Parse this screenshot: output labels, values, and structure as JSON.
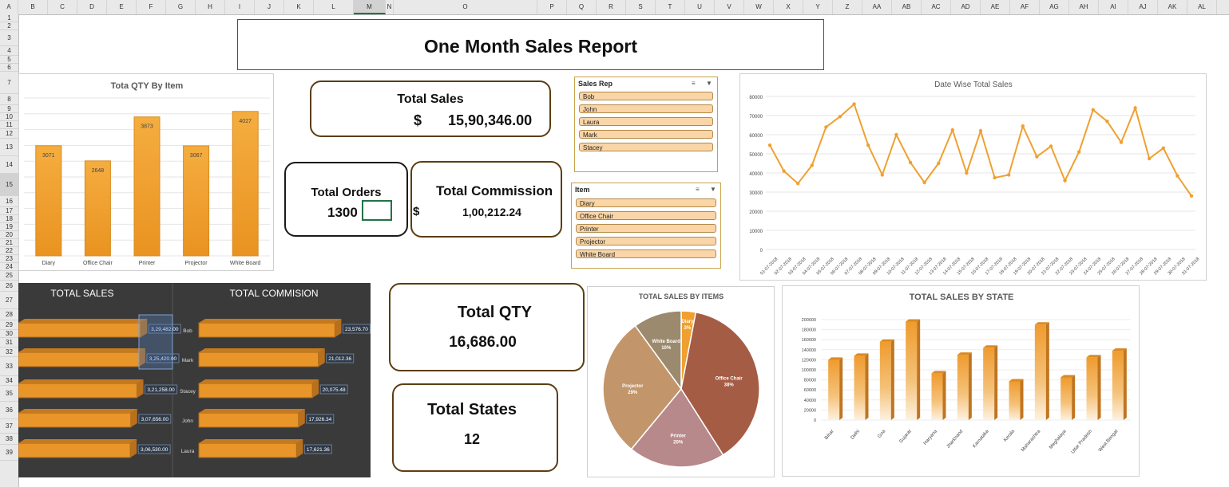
{
  "sheet": {
    "columns": [
      "A",
      "B",
      "C",
      "D",
      "E",
      "F",
      "G",
      "H",
      "I",
      "J",
      "K",
      "L",
      "M",
      "N",
      "O",
      "P",
      "Q",
      "R",
      "S",
      "T",
      "U",
      "V",
      "W",
      "X",
      "Y",
      "Z",
      "AA",
      "AB",
      "AC",
      "AD",
      "AE",
      "AF",
      "AG",
      "AH",
      "AI",
      "AJ",
      "AK",
      "AL"
    ],
    "selected_column": "M",
    "rows": [
      "1",
      "2",
      "3",
      "4",
      "5",
      "6",
      "7",
      "8",
      "9",
      "10",
      "11",
      "12",
      "13",
      "14",
      "15",
      "16",
      "17",
      "18",
      "19",
      "20",
      "21",
      "22",
      "23",
      "24",
      "25",
      "26",
      "27",
      "28",
      "29",
      "30",
      "31",
      "32",
      "33",
      "34",
      "35",
      "36",
      "37",
      "38",
      "39"
    ],
    "selected_row": "15"
  },
  "report_title": "One Month Sales Report",
  "kpis": {
    "total_sales": {
      "label": "Total Sales",
      "currency": "$",
      "value": "15,90,346.00"
    },
    "total_orders": {
      "label": "Total Orders",
      "value": "1300"
    },
    "total_commission": {
      "label": "Total Commission",
      "currency": "$",
      "value": "1,00,212.24"
    },
    "total_qty": {
      "label": "Total QTY",
      "value": "16,686.00"
    },
    "total_states": {
      "label": "Total States",
      "value": "12"
    }
  },
  "slicers": {
    "sales_rep": {
      "title": "Sales Rep",
      "items": [
        "Bob",
        "John",
        "Laura",
        "Mark",
        "Stacey"
      ]
    },
    "item": {
      "title": "Item",
      "items": [
        "Diary",
        "Office Chair",
        "Printer",
        "Projector",
        "White Board"
      ]
    }
  },
  "charts": {
    "qty_by_item": {
      "type": "bar",
      "title": "Tota QTY By Item",
      "categories": [
        "Diary",
        "Office Chair",
        "Printer",
        "Projector",
        "White Board"
      ],
      "values": [
        3071,
        2648,
        3873,
        3067,
        4027
      ],
      "ylim": [
        0,
        4400
      ],
      "color": "#f0a030"
    },
    "date_wise_sales": {
      "type": "line",
      "title": "Date Wise Total Sales",
      "x": [
        "01-07-2018",
        "02-07-2018",
        "03-07-2018",
        "04-07-2018",
        "05-07-2018",
        "06-07-2018",
        "07-07-2018",
        "08-07-2018",
        "09-07-2018",
        "10-07-2018",
        "11-07-2018",
        "12-07-2018",
        "13-07-2018",
        "14-07-2018",
        "15-07-2018",
        "16-07-2018",
        "17-07-2018",
        "18-07-2018",
        "19-07-2018",
        "20-07-2018",
        "21-07-2018",
        "22-07-2018",
        "23-07-2018",
        "24-07-2018",
        "25-07-2018",
        "26-07-2018",
        "27-07-2018",
        "28-07-2018",
        "29-07-2018",
        "30-07-2018",
        "31-07-2018"
      ],
      "values": [
        54500,
        41000,
        34500,
        44000,
        64000,
        69500,
        76000,
        54500,
        39000,
        60000,
        45500,
        35000,
        45000,
        62500,
        40000,
        62000,
        37500,
        39000,
        64500,
        48500,
        54000,
        36000,
        51000,
        73000,
        67000,
        56000,
        74000,
        47500,
        53000,
        38500,
        28000
      ],
      "yticks": [
        "0",
        "10000",
        "20000",
        "30000",
        "40000",
        "50000",
        "60000",
        "70000",
        "80000"
      ],
      "ylim": [
        0,
        80000
      ],
      "color": "#f0a030"
    },
    "total_sales_rep": {
      "type": "bar",
      "title": "TOTAL SALES",
      "values": [
        329482,
        325420,
        321258,
        307656,
        306530
      ],
      "labels": [
        "3,29,482.00",
        "3,25,420.00",
        "3,21,258.00",
        "3,07,656.00",
        "3,06,530.00"
      ]
    },
    "total_commission_rep": {
      "type": "bar",
      "title": "TOTAL COMMISION",
      "categories": [
        "Bob",
        "Mark",
        "Stacey",
        "John",
        "Laura"
      ],
      "values": [
        23576.7,
        21012.36,
        20075.48,
        17926.34,
        17621.36
      ],
      "labels": [
        "23,576.70",
        "21,012.36",
        "20,075.48",
        "17,926.34",
        "17,621.36"
      ]
    },
    "sales_by_items": {
      "type": "pie",
      "title": "TOTAL SALES BY ITEMS",
      "slices": [
        {
          "name": "Diary",
          "pct": 3,
          "label": "3%",
          "color": "#f0a030"
        },
        {
          "name": "Office Chair",
          "pct": 38,
          "label": "38%",
          "color": "#a55c45"
        },
        {
          "name": "Printer",
          "pct": 20,
          "label": "20%",
          "color": "#b8898a"
        },
        {
          "name": "Projector",
          "pct": 29,
          "label": "29%",
          "color": "#c2956a"
        },
        {
          "name": "White Board",
          "pct": 10,
          "label": "10%",
          "color": "#9c8a6e"
        }
      ]
    },
    "sales_by_state": {
      "type": "bar",
      "title": "TOTAL SALES BY STATE",
      "categories": [
        "Bihar",
        "Delhi",
        "Goa",
        "Gujarat",
        "Haryana",
        "Jharkhand",
        "Karnataka",
        "Kerala",
        "Maharashtra",
        "Meghalaya",
        "Uttar Pradesh",
        "West Bengal"
      ],
      "values": [
        120000,
        128000,
        156000,
        196000,
        93000,
        130000,
        144000,
        77000,
        190000,
        85000,
        125000,
        138000
      ],
      "yticks": [
        "0",
        "20000",
        "40000",
        "60000",
        "80000",
        "100000",
        "120000",
        "140000",
        "160000",
        "180000",
        "200000"
      ],
      "ylim": [
        0,
        200000
      ],
      "color": "#f0a030"
    }
  }
}
